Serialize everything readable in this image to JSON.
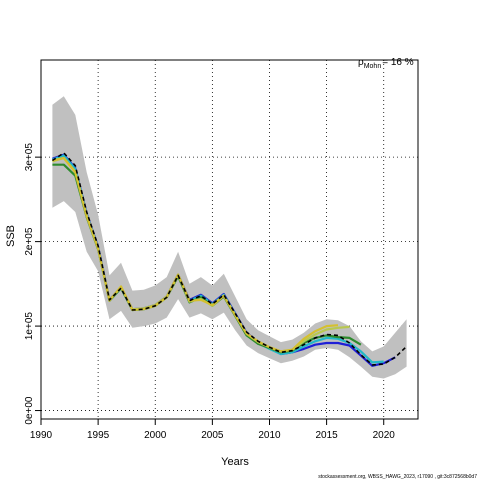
{
  "chart_data": {
    "type": "line",
    "title": "",
    "xlabel": "Years",
    "ylabel": "SSB",
    "xlim": [
      1990,
      2023
    ],
    "ylim": [
      -10000,
      415000
    ],
    "grid": true,
    "x_ticks": [
      1990,
      1995,
      2000,
      2005,
      2010,
      2015,
      2020
    ],
    "x_tick_labels": [
      "1990",
      "1995",
      "2000",
      "2005",
      "2010",
      "2015",
      "2020"
    ],
    "y_ticks": [
      0,
      100000,
      200000,
      300000
    ],
    "y_tick_labels": [
      "0e+00",
      "1e+05",
      "2e+05",
      "3e+05"
    ],
    "annotation": {
      "rho_prefix": "ρ",
      "rho_subscript": "Mohn",
      "rho_value": "= 16 %"
    },
    "footnote": "stockassessment.org, WBSS_HAWG_2023, r17090 , git:3c872568b0d7",
    "confidence_band": {
      "x": [
        1991,
        1992,
        1993,
        1994,
        1995,
        1996,
        1997,
        1998,
        1999,
        2000,
        2001,
        2002,
        2003,
        2004,
        2005,
        2006,
        2007,
        2008,
        2009,
        2010,
        2011,
        2012,
        2013,
        2014,
        2015,
        2016,
        2017,
        2018,
        2019,
        2020,
        2021,
        2022
      ],
      "upper": [
        362000,
        372000,
        350000,
        282000,
        232000,
        160000,
        175000,
        142000,
        143000,
        148000,
        158000,
        188000,
        150000,
        158000,
        148000,
        162000,
        135000,
        108000,
        95000,
        88000,
        81000,
        84000,
        92000,
        103000,
        108000,
        107000,
        100000,
        82000,
        70000,
        76000,
        92000,
        108000
      ],
      "lower": [
        240000,
        248000,
        235000,
        188000,
        165000,
        108000,
        118000,
        98000,
        100000,
        103000,
        110000,
        132000,
        110000,
        115000,
        108000,
        116000,
        95000,
        77000,
        68000,
        62000,
        56000,
        59000,
        64000,
        72000,
        74000,
        72000,
        63000,
        52000,
        40000,
        38000,
        43000,
        52000
      ],
      "color": "#c0c0c0"
    },
    "series": [
      {
        "color": "#000000",
        "dashed": true,
        "x": [
          1991,
          1992,
          1993,
          1994,
          1995,
          1996,
          1997,
          1998,
          1999,
          2000,
          2001,
          2002,
          2003,
          2004,
          2005,
          2006,
          2007,
          2008,
          2009,
          2010,
          2011,
          2012,
          2013,
          2014,
          2015,
          2016,
          2017,
          2018,
          2019,
          2020,
          2021,
          2022
        ],
        "values": [
          296000,
          305000,
          290000,
          235000,
          195000,
          131000,
          145000,
          119000,
          120000,
          124000,
          134000,
          160000,
          130000,
          136000,
          126000,
          137000,
          115000,
          93000,
          82000,
          75000,
          69000,
          71000,
          78000,
          86000,
          90000,
          89000,
          80000,
          66000,
          54000,
          55000,
          63000,
          76000
        ]
      },
      {
        "color": "#1f1fd6",
        "x": [
          1991,
          1992,
          1993,
          1994,
          1995,
          1996,
          1997,
          1998,
          1999,
          2000,
          2001,
          2002,
          2003,
          2004,
          2005,
          2006,
          2007,
          2008,
          2009,
          2010,
          2011,
          2012,
          2013,
          2014,
          2015,
          2016,
          2017,
          2018,
          2019,
          2020,
          2021
        ],
        "values": [
          298000,
          303000,
          287000,
          233000,
          194000,
          131000,
          146000,
          120000,
          121000,
          125000,
          135000,
          161000,
          131000,
          137000,
          127000,
          138000,
          115000,
          92000,
          81000,
          74000,
          67000,
          69000,
          73000,
          78000,
          80000,
          80000,
          77000,
          65000,
          53000,
          56000,
          63000
        ]
      },
      {
        "color": "#22b8c8",
        "x": [
          1991,
          1992,
          1993,
          1994,
          1995,
          1996,
          1997,
          1998,
          1999,
          2000,
          2001,
          2002,
          2003,
          2004,
          2005,
          2006,
          2007,
          2008,
          2009,
          2010,
          2011,
          2012,
          2013,
          2014,
          2015,
          2016,
          2017,
          2018,
          2019,
          2020
        ],
        "values": [
          297000,
          302000,
          286000,
          232000,
          193000,
          130000,
          145000,
          119000,
          120000,
          124000,
          134000,
          160000,
          130000,
          136000,
          126000,
          137000,
          114000,
          91000,
          80000,
          73000,
          67000,
          69000,
          76000,
          82000,
          86000,
          85000,
          80000,
          70000,
          57000,
          58000
        ]
      },
      {
        "color": "#2e8b2e",
        "x": [
          1991,
          1992,
          1993,
          1994,
          1995,
          1996,
          1997,
          1998,
          1999,
          2000,
          2001,
          2002,
          2003,
          2004,
          2005,
          2006,
          2007,
          2008,
          2009,
          2010,
          2011,
          2012,
          2013,
          2014,
          2015,
          2016,
          2017,
          2018
        ],
        "values": [
          291000,
          291000,
          278000,
          229000,
          191000,
          130000,
          145000,
          119000,
          120000,
          124000,
          134000,
          159000,
          128000,
          134000,
          124000,
          135000,
          112000,
          89000,
          79000,
          74000,
          69000,
          71000,
          80000,
          86000,
          89000,
          87000,
          86000,
          78000
        ]
      },
      {
        "color": "#b8c850",
        "x": [
          1991,
          1992,
          1993,
          1994,
          1995,
          1996,
          1997,
          1998,
          1999,
          2000,
          2001,
          2002,
          2003,
          2004,
          2005,
          2006,
          2007,
          2008,
          2009,
          2010,
          2011,
          2012,
          2013,
          2014,
          2015,
          2016,
          2017
        ],
        "values": [
          295000,
          299000,
          283000,
          231000,
          192000,
          131000,
          146000,
          120000,
          121000,
          125000,
          135000,
          161000,
          129000,
          132000,
          124000,
          136000,
          113000,
          91000,
          81000,
          75000,
          70000,
          72000,
          82000,
          90000,
          96000,
          98000,
          99000
        ]
      },
      {
        "color": "#d4c030",
        "x": [
          1991,
          1992,
          1993,
          1994,
          1995,
          1996,
          1997,
          1998,
          1999,
          2000,
          2001,
          2002,
          2003,
          2004,
          2005,
          2006,
          2007,
          2008,
          2009,
          2010,
          2011,
          2012,
          2013,
          2014,
          2015,
          2016
        ],
        "values": [
          296000,
          299000,
          282000,
          230000,
          192000,
          130000,
          147000,
          119000,
          120000,
          124000,
          134000,
          161000,
          130000,
          131000,
          125000,
          136000,
          113000,
          91000,
          82000,
          75000,
          70000,
          72000,
          85000,
          94000,
          100000,
          101000
        ]
      }
    ]
  }
}
